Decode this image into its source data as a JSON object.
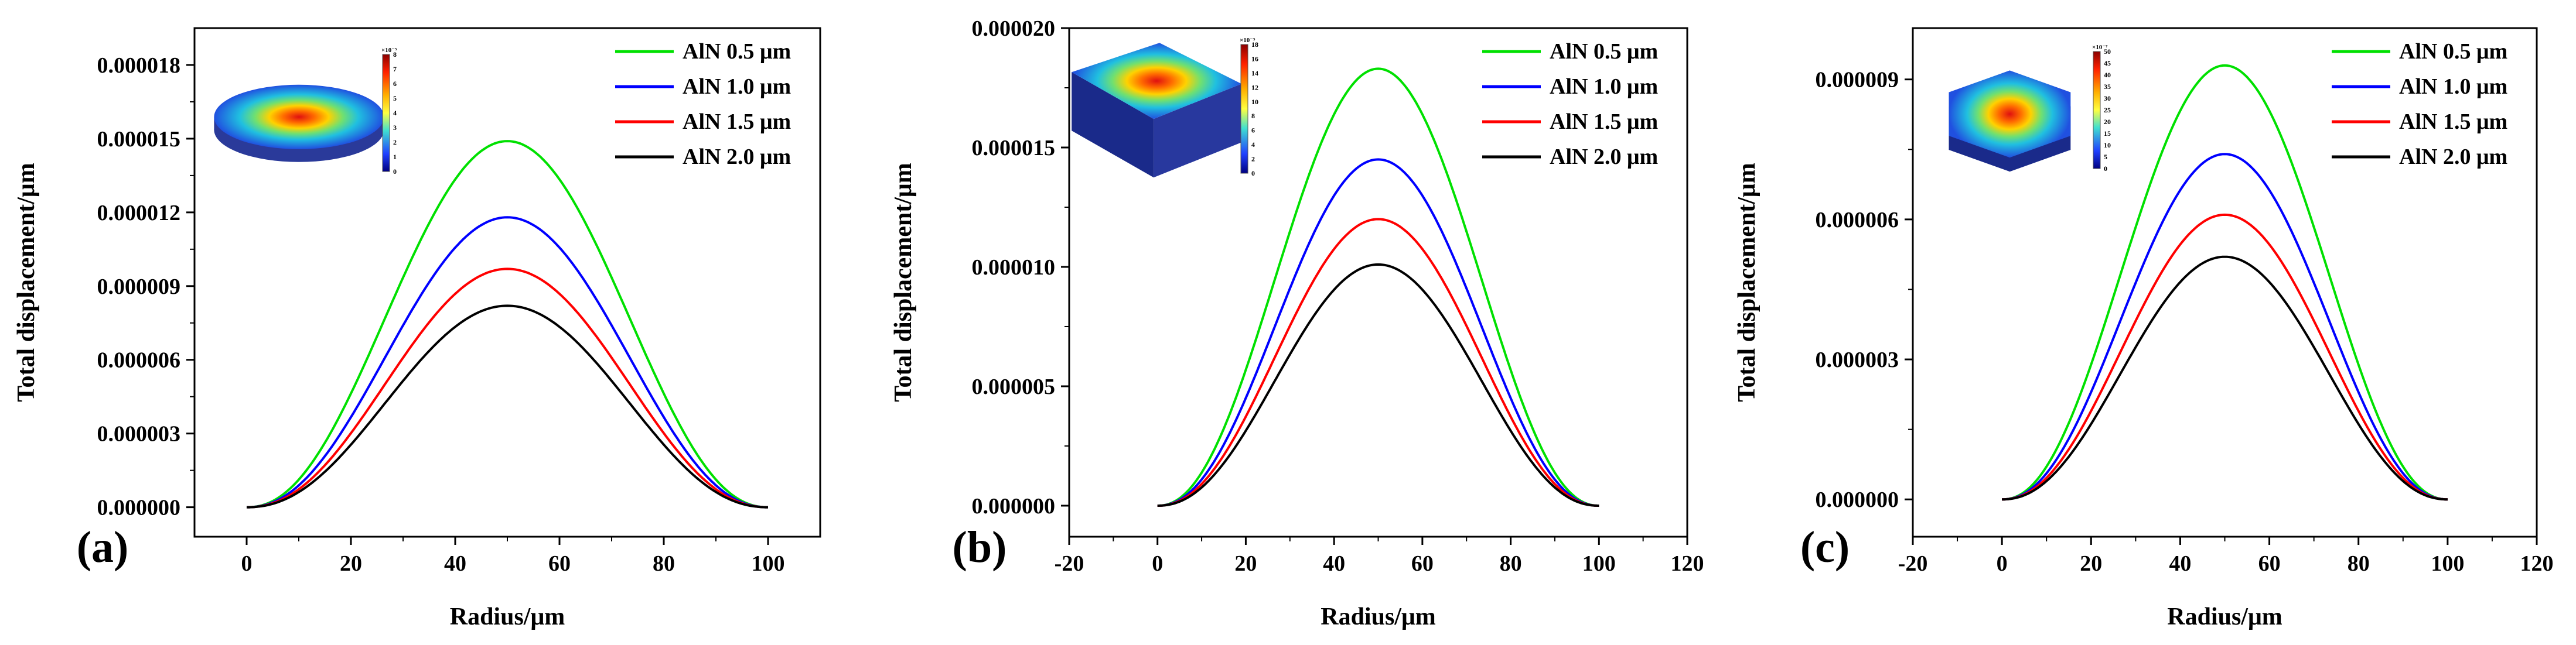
{
  "chart_data": [
    {
      "type": "line",
      "panel_label": "(a)",
      "xlabel": "Radius/μm",
      "ylabel": "Total displacement/μm",
      "xlim": [
        -10,
        110
      ],
      "ylim": [
        -1.2e-06,
        1.95e-05
      ],
      "xticks": [
        0,
        20,
        40,
        60,
        80,
        100
      ],
      "yticks": [
        0,
        3e-06,
        6e-06,
        9e-06,
        1.2e-05,
        1.5e-05,
        1.8e-05
      ],
      "xtick_labels": [
        "0",
        "20",
        "40",
        "60",
        "80",
        "100"
      ],
      "ytick_labels": [
        "0.000000",
        "0.000003",
        "0.000006",
        "0.000009",
        "0.000012",
        "0.000015",
        "0.000018"
      ],
      "x_range": [
        0,
        100
      ],
      "series": [
        {
          "name": "AlN 0.5 μm",
          "color": "#00e000",
          "peak": 1.49e-05
        },
        {
          "name": "AlN 1.0 μm",
          "color": "#0000ff",
          "peak": 1.18e-05
        },
        {
          "name": "AlN 1.5 μm",
          "color": "#ff0000",
          "peak": 9.7e-06
        },
        {
          "name": "AlN 2.0 μm",
          "color": "#000000",
          "peak": 8.2e-06
        }
      ],
      "inset": {
        "shape": "disk",
        "colorbar_exponent": "×10⁻⁵",
        "colorbar_ticks": [
          "8",
          "7",
          "6",
          "5",
          "4",
          "3",
          "2",
          "1",
          "0"
        ]
      }
    },
    {
      "type": "line",
      "panel_label": "(b)",
      "xlabel": "Radius/μm",
      "ylabel": "Total displacement/μm",
      "xlim": [
        -20,
        120
      ],
      "ylim": [
        -1.3e-06,
        2e-05
      ],
      "xticks": [
        -20,
        0,
        20,
        40,
        60,
        80,
        100,
        120
      ],
      "yticks": [
        0,
        5e-06,
        1e-05,
        1.5e-05,
        2e-05
      ],
      "xtick_labels": [
        "-20",
        "0",
        "20",
        "40",
        "60",
        "80",
        "100",
        "120"
      ],
      "ytick_labels": [
        "0.000000",
        "0.000005",
        "0.000010",
        "0.000015",
        "0.000020"
      ],
      "x_range": [
        0,
        100
      ],
      "series": [
        {
          "name": "AlN 0.5 μm",
          "color": "#00e000",
          "peak": 1.83e-05
        },
        {
          "name": "AlN 1.0 μm",
          "color": "#0000ff",
          "peak": 1.45e-05
        },
        {
          "name": "AlN 1.5 μm",
          "color": "#ff0000",
          "peak": 1.2e-05
        },
        {
          "name": "AlN 2.0 μm",
          "color": "#000000",
          "peak": 1.01e-05
        }
      ],
      "inset": {
        "shape": "square",
        "colorbar_exponent": "×10⁻⁵",
        "colorbar_ticks": [
          "18",
          "16",
          "14",
          "12",
          "10",
          "8",
          "6",
          "4",
          "2",
          "0"
        ]
      }
    },
    {
      "type": "line",
      "panel_label": "(c)",
      "xlabel": "Radius/μm",
      "ylabel": "Total displacement/μm",
      "xlim": [
        -20,
        120
      ],
      "ylim": [
        -8e-07,
        1.01e-05
      ],
      "xticks": [
        -20,
        0,
        20,
        40,
        60,
        80,
        100,
        120
      ],
      "yticks": [
        0,
        3e-06,
        6e-06,
        9e-06
      ],
      "xtick_labels": [
        "-20",
        "0",
        "20",
        "40",
        "60",
        "80",
        "100",
        "120"
      ],
      "ytick_labels": [
        "0.000000",
        "0.000003",
        "0.000006",
        "0.000009"
      ],
      "x_range": [
        0,
        100
      ],
      "series": [
        {
          "name": "AlN 0.5 μm",
          "color": "#00e000",
          "peak": 9.3e-06
        },
        {
          "name": "AlN 1.0 μm",
          "color": "#0000ff",
          "peak": 7.4e-06
        },
        {
          "name": "AlN 1.5 μm",
          "color": "#ff0000",
          "peak": 6.1e-06
        },
        {
          "name": "AlN 2.0 μm",
          "color": "#000000",
          "peak": 5.2e-06
        }
      ],
      "inset": {
        "shape": "hexagon",
        "colorbar_exponent": "×10⁻⁷",
        "colorbar_ticks": [
          "50",
          "45",
          "40",
          "35",
          "30",
          "25",
          "20",
          "15",
          "10",
          "5",
          "0"
        ]
      }
    }
  ]
}
